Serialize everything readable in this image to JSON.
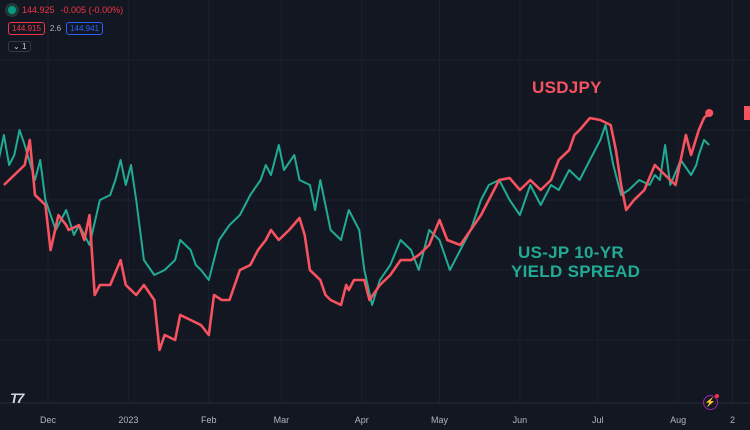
{
  "legend": {
    "status_icon": "green-dot",
    "price": "144.925",
    "change": "-0.005 (-0.00%)",
    "bid": "144.915",
    "spread": "2.6",
    "ask": "144.941",
    "collapse_label": "1"
  },
  "colors": {
    "usdjpy": "#f7525f",
    "spread": "#22ab94",
    "background": "#131722"
  },
  "chart_data": {
    "type": "line",
    "title": "",
    "x_unit": "days since 2022-12-01",
    "xlim": [
      -19,
      268
    ],
    "tick_labels": [
      {
        "label": "Dec",
        "x": 0
      },
      {
        "label": "2023",
        "x": 31
      },
      {
        "label": "Feb",
        "x": 62
      },
      {
        "label": "Mar",
        "x": 90
      },
      {
        "label": "Apr",
        "x": 121
      },
      {
        "label": "May",
        "x": 151
      },
      {
        "label": "Jun",
        "x": 182
      },
      {
        "label": "Jul",
        "x": 212
      },
      {
        "label": "Aug",
        "x": 243
      },
      {
        "label": "2",
        "x": 264
      }
    ],
    "annotations": [
      "USDJPY",
      "US-JP 10-YR",
      "YIELD SPREAD"
    ],
    "series": [
      {
        "name": "USDJPY",
        "axis": "price",
        "x": [
          -17,
          -13,
          -9,
          -7,
          -5,
          -1,
          1,
          4,
          7,
          8,
          12,
          14,
          16,
          18,
          20,
          24,
          28,
          30,
          34,
          37,
          41,
          43,
          45,
          49,
          51,
          55,
          59,
          62,
          64,
          67,
          70,
          74,
          78,
          81,
          84,
          86,
          89,
          93,
          97,
          99,
          101,
          105,
          107,
          109,
          113,
          115,
          116,
          118,
          122,
          124,
          128,
          132,
          136,
          140,
          143,
          147,
          151,
          154,
          159,
          163,
          167,
          170,
          174,
          178,
          182,
          186,
          190,
          194,
          197,
          201,
          203,
          205,
          209,
          213,
          217,
          219,
          221,
          223,
          226,
          230,
          234,
          238,
          242,
          246,
          248,
          251,
          253,
          255
        ],
        "y": [
          139.52,
          140.27,
          141.02,
          142.9,
          138.77,
          138.02,
          134.63,
          137.26,
          136.51,
          136.14,
          136.51,
          135.39,
          137.26,
          131.26,
          132.01,
          132.01,
          133.88,
          132.01,
          131.26,
          132.01,
          130.88,
          127.13,
          128.25,
          127.88,
          129.76,
          129.38,
          129.0,
          128.25,
          131.26,
          130.88,
          130.88,
          133.13,
          133.51,
          134.63,
          135.39,
          136.14,
          135.39,
          136.14,
          137.04,
          135.76,
          133.13,
          132.38,
          131.26,
          130.88,
          130.51,
          132.01,
          131.63,
          132.38,
          132.38,
          130.88,
          132.01,
          132.76,
          133.88,
          133.88,
          134.26,
          135.01,
          136.89,
          135.39,
          135.01,
          136.14,
          137.26,
          138.39,
          139.89,
          140.04,
          139.14,
          139.89,
          139.14,
          139.89,
          141.4,
          142.15,
          143.27,
          143.65,
          144.55,
          144.4,
          144.02,
          142.15,
          139.52,
          137.64,
          138.39,
          139.14,
          141.02,
          140.27,
          139.52,
          143.27,
          141.77,
          143.65,
          144.55,
          144.925
        ]
      },
      {
        "name": "US-JP 10-YR YIELD SPREAD",
        "axis": "spread",
        "x": [
          -19,
          -17,
          -15,
          -13,
          -11,
          -9,
          -5,
          -3,
          -1,
          3,
          7,
          10,
          12,
          16,
          20,
          24,
          26,
          28,
          30,
          32,
          34,
          37,
          41,
          45,
          49,
          51,
          55,
          57,
          59,
          62,
          66,
          70,
          74,
          78,
          82,
          84,
          86,
          89,
          91,
          95,
          97,
          101,
          103,
          105,
          109,
          113,
          116,
          120,
          122,
          125,
          128,
          132,
          136,
          140,
          143,
          147,
          151,
          155,
          159,
          163,
          167,
          170,
          174,
          178,
          182,
          186,
          190,
          194,
          197,
          201,
          205,
          209,
          213,
          215,
          218,
          221,
          224,
          228,
          232,
          234,
          236,
          238,
          240,
          244,
          248,
          250,
          251,
          253,
          255
        ],
        "y": [
          4.16,
          4.26,
          4.14,
          4.18,
          4.28,
          4.22,
          4.08,
          4.16,
          4.0,
          3.88,
          3.96,
          3.86,
          3.9,
          3.82,
          4.0,
          4.02,
          4.08,
          4.16,
          4.06,
          4.14,
          4.0,
          3.76,
          3.7,
          3.72,
          3.76,
          3.84,
          3.8,
          3.74,
          3.72,
          3.68,
          3.84,
          3.9,
          3.94,
          4.02,
          4.08,
          4.14,
          4.1,
          4.22,
          4.12,
          4.18,
          4.08,
          4.06,
          3.96,
          4.08,
          3.88,
          3.84,
          3.96,
          3.88,
          3.72,
          3.58,
          3.68,
          3.74,
          3.84,
          3.8,
          3.72,
          3.88,
          3.84,
          3.72,
          3.8,
          3.88,
          4.0,
          4.06,
          4.08,
          4.0,
          3.94,
          4.06,
          3.98,
          4.06,
          4.04,
          4.12,
          4.08,
          4.16,
          4.24,
          4.3,
          4.14,
          4.02,
          4.04,
          4.08,
          4.06,
          4.1,
          4.08,
          4.22,
          4.06,
          4.16,
          4.1,
          4.14,
          4.18,
          4.24,
          4.22
        ]
      }
    ]
  }
}
